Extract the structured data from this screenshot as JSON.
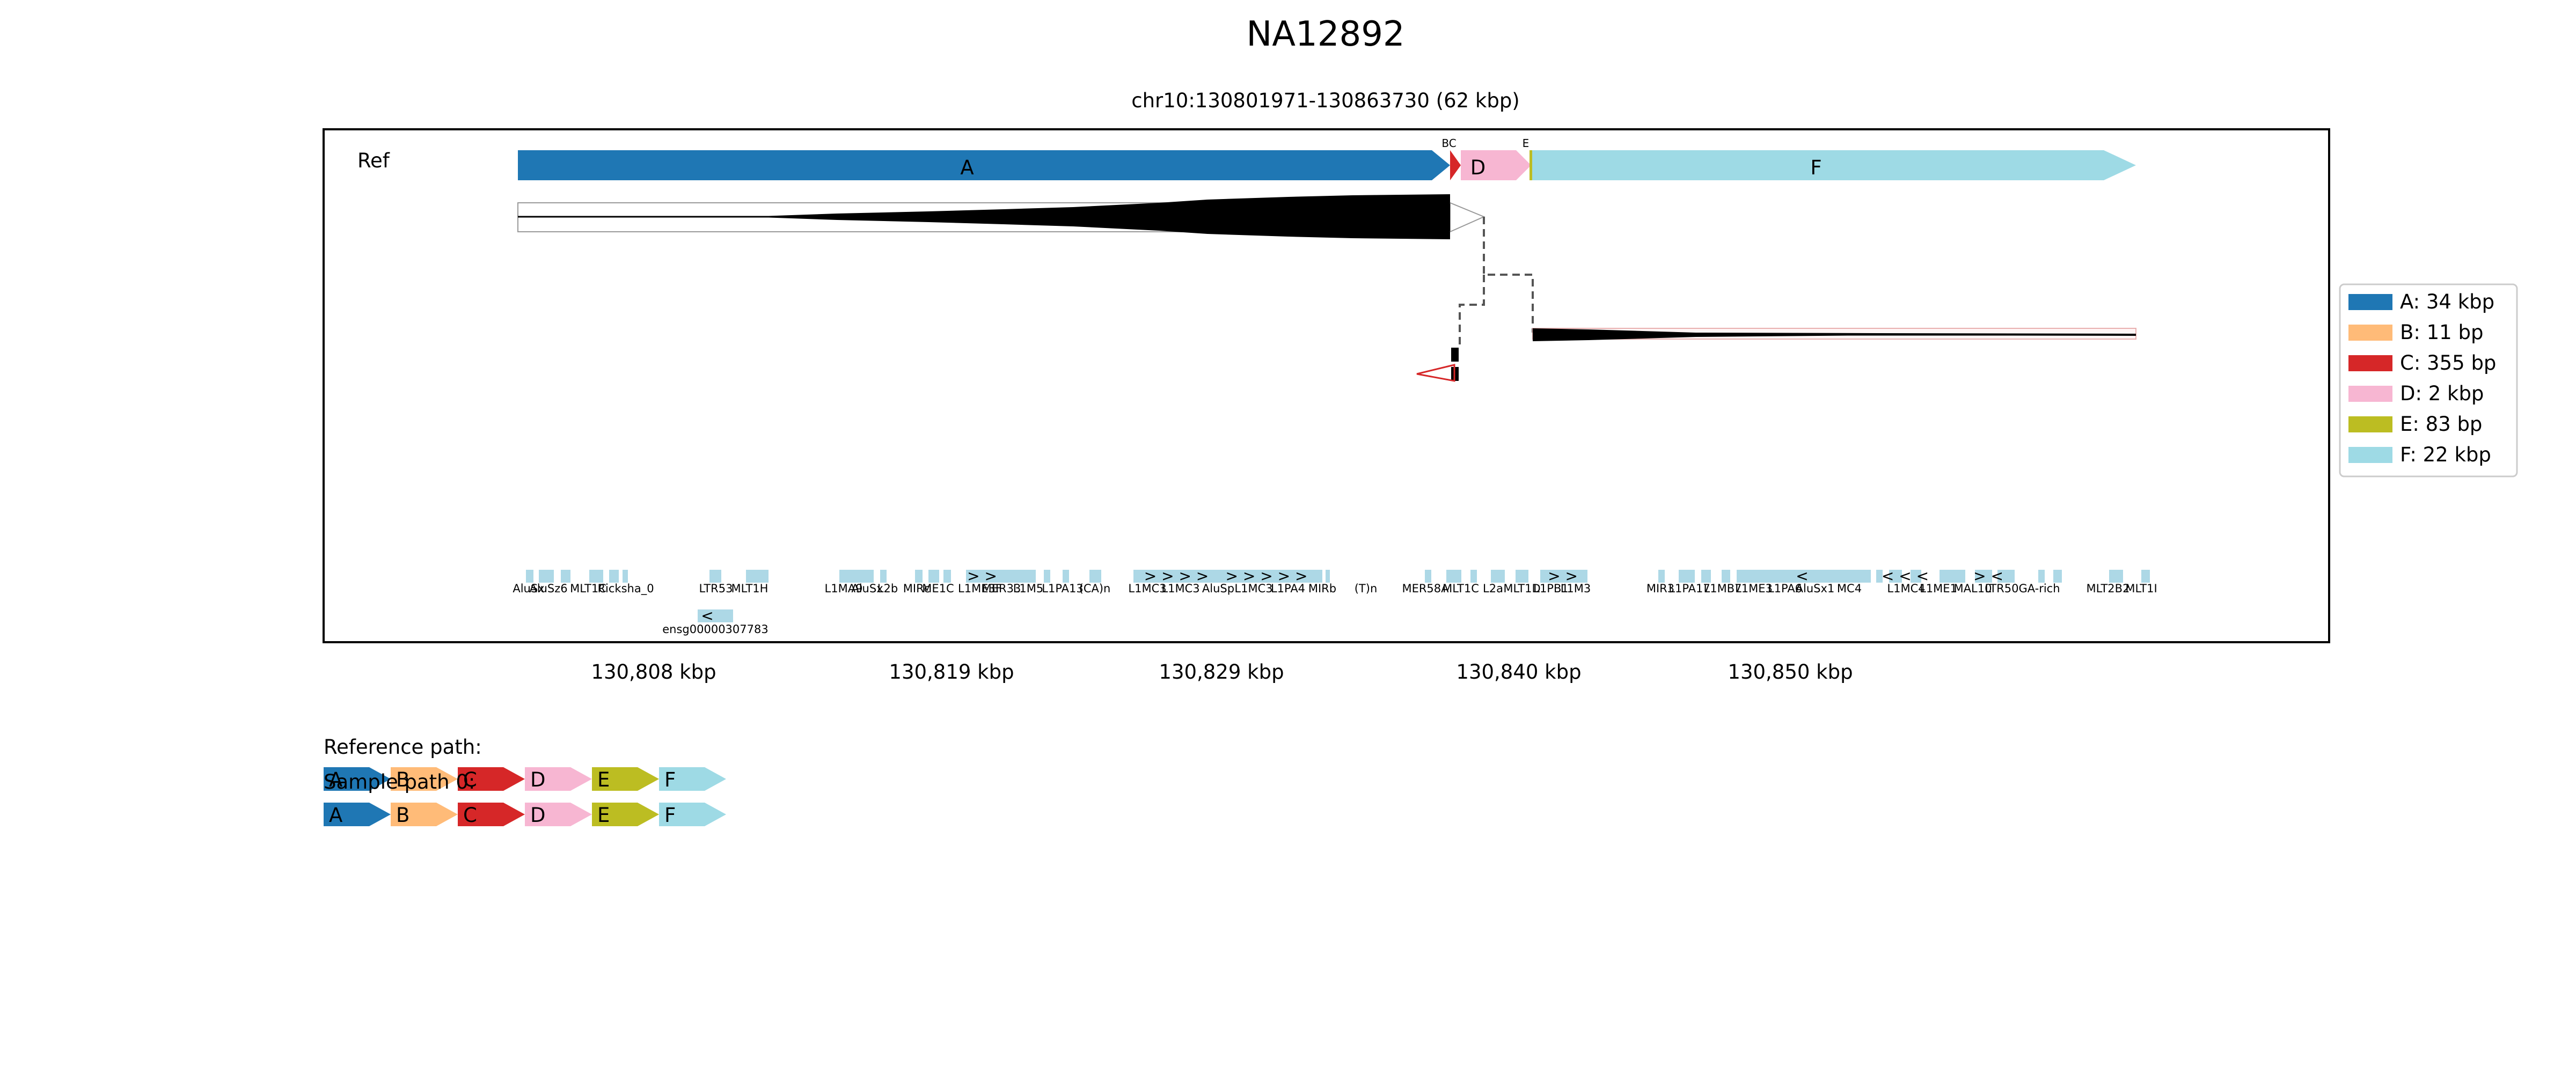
{
  "title": "NA12892",
  "subtitle": "chr10:130801971-130863730 (62 kbp)",
  "track_label": "Ref",
  "segments": [
    {
      "id": "A",
      "label": "A: 34 kbp",
      "color": "#1f77b4"
    },
    {
      "id": "B",
      "label": "B: 11 bp",
      "color": "#ffbb78"
    },
    {
      "id": "C",
      "label": "C: 355 bp",
      "color": "#d62728"
    },
    {
      "id": "D",
      "label": "D: 2 kbp",
      "color": "#f7b6d2"
    },
    {
      "id": "E",
      "label": "E: 83 bp",
      "color": "#bcbd22"
    },
    {
      "id": "F",
      "label": "F: 22 kbp",
      "color": "#9edae5"
    }
  ],
  "small_labels": {
    "bc": "BC",
    "e": "E"
  },
  "axis_ticks": [
    "130,808 kbp",
    "130,819 kbp",
    "130,829 kbp",
    "130,840 kbp",
    "130,850 kbp"
  ],
  "repeats": [
    "AluSx",
    "AluSz6",
    "MLT1C",
    "Tigger1",
    "Kanga1",
    "Charlie",
    "Ricksha_0",
    "LTR53",
    "MLT1H",
    "L1MA9",
    "AluSx",
    "L2b",
    "MIRc",
    "ME1C",
    "L1ME3F",
    "MER33",
    "MLT1C",
    "L1M5",
    "L1PA13",
    "(CA)n",
    "L1MC3",
    "L1MC3",
    "AluSp",
    "L1MC3",
    "L1PA4",
    "MIRb",
    "(T)n",
    "MER58A",
    "MLT1C",
    "L2a",
    "MLT1D",
    "L1PB1",
    "L1M3",
    "MIR3",
    "L1PA17",
    "L1MB7",
    "L1ME3",
    "L1PA6",
    "AluSx1",
    "MC4",
    "L1MC4",
    "L1ME1",
    "MAL10",
    "LTR50",
    "GA-rich",
    "MLT2B2",
    "MLT1I"
  ],
  "gene": {
    "name": "ensg00000307783",
    "strand": "<"
  },
  "arrows": {
    "fwd": "> >",
    "fwd2": "> > > >",
    "fwd3": "> > > > >",
    "rev": "<",
    "rev3": "< < <",
    "fr": "> <"
  },
  "paths": [
    {
      "label": "Reference path:",
      "segments": [
        "A",
        "B",
        "C",
        "D",
        "E",
        "F"
      ]
    },
    {
      "label": "Sample path 0:",
      "segments": [
        "A",
        "B",
        "C",
        "D",
        "E",
        "F"
      ]
    }
  ]
}
